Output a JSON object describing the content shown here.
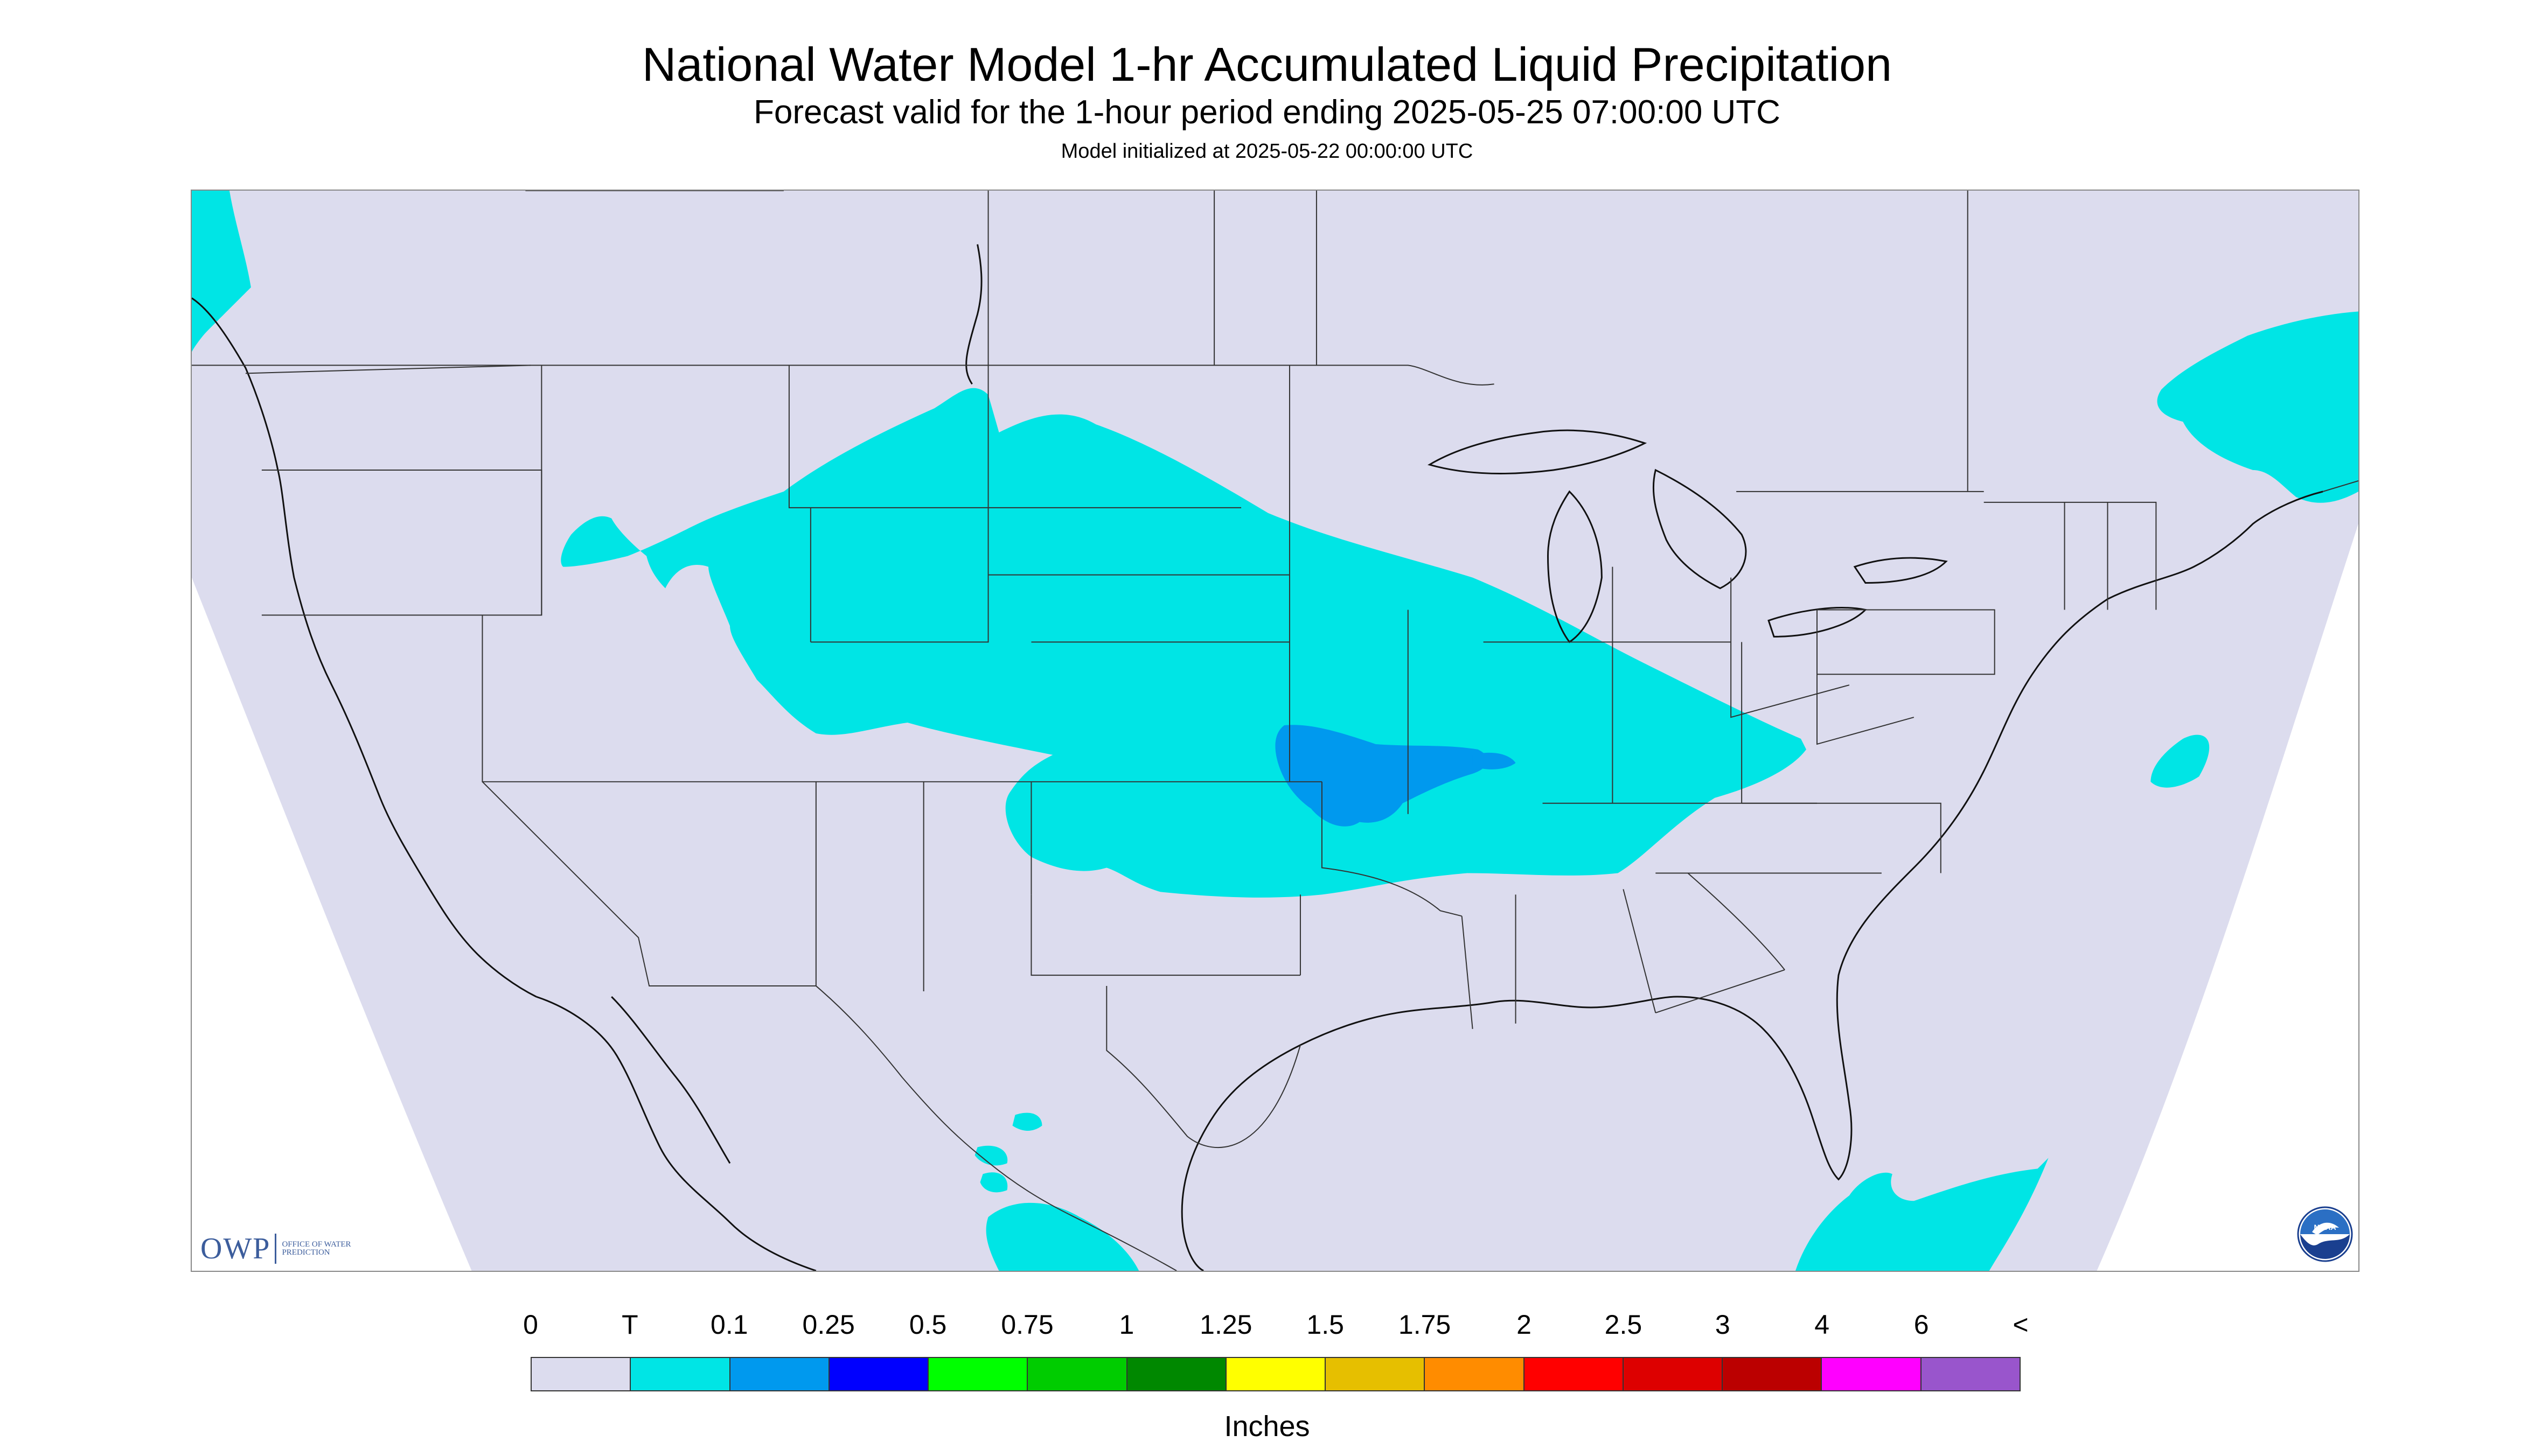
{
  "header": {
    "title": "National Water Model 1-hr Accumulated Liquid Precipitation",
    "subtitle": "Forecast valid for the 1-hour period ending 2025-05-25 07:00:00 UTC",
    "init_line": "Model initialized at 2025-05-22 00:00:00 UTC"
  },
  "map": {
    "background_color": "#dcdcee",
    "outside_color": "#ffffff",
    "boundary_color": "#333333",
    "coast_color": "#111111",
    "precip_regions": [
      {
        "name": "central-plains-band",
        "category": "T",
        "color": "#00e5e5"
      },
      {
        "name": "ozarks-core",
        "category": "0.1",
        "color": "#0099ee"
      },
      {
        "name": "pacific-northwest-coast",
        "category": "T",
        "color": "#00e5e5"
      },
      {
        "name": "new-england-nova-scotia",
        "category": "T",
        "color": "#00e5e5"
      },
      {
        "name": "atlantic-offshore",
        "category": "T",
        "color": "#00e5e5"
      },
      {
        "name": "caribbean-west",
        "category": "T",
        "color": "#00e5e5"
      },
      {
        "name": "southern-mexico",
        "category": "T",
        "color": "#00e5e5"
      }
    ]
  },
  "logos": {
    "owp_abbrev": "OWP",
    "owp_full": "OFFICE OF WATER PREDICTION",
    "noaa_text": "NOAA"
  },
  "legend": {
    "labels": [
      "0",
      "T",
      "0.1",
      "0.25",
      "0.5",
      "0.75",
      "1",
      "1.25",
      "1.5",
      "1.75",
      "2",
      "2.5",
      "3",
      "4",
      "6",
      "<"
    ],
    "colors": [
      "#dcdcee",
      "#00e5e5",
      "#0099ee",
      "#0000ff",
      "#00ff00",
      "#00cc00",
      "#008800",
      "#ffff00",
      "#e6bf00",
      "#ff8c00",
      "#ff0000",
      "#dd0000",
      "#bb0000",
      "#ff00ff",
      "#9955cc"
    ],
    "units": "Inches"
  }
}
